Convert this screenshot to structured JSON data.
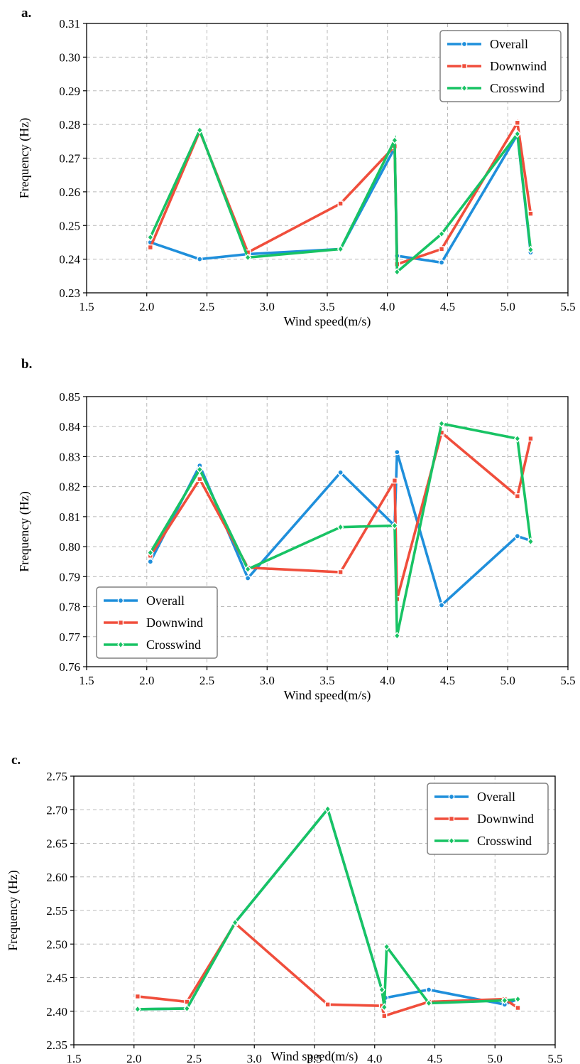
{
  "figure": {
    "colors": {
      "Overall": "#1f8fdb",
      "Downwind": "#f04e3c",
      "Crosswind": "#18c364"
    },
    "markers": {
      "Overall": "circle",
      "Downwind": "square",
      "Crosswind": "diamond"
    }
  },
  "chart_data": [
    {
      "panel_label": "a.",
      "type": "line",
      "xlabel": "Wind speed(m/s)",
      "ylabel": "Frequency (Hz)",
      "xlim": [
        1.5,
        5.5
      ],
      "ylim": [
        0.23,
        0.31
      ],
      "xticks": [
        "1.5",
        "2.0",
        "2.5",
        "3.0",
        "3.5",
        "4.0",
        "4.5",
        "5.0",
        "5.5"
      ],
      "yticks": [
        "0.23",
        "0.24",
        "0.25",
        "0.26",
        "0.27",
        "0.28",
        "0.29",
        "0.30",
        "0.31"
      ],
      "grid": true,
      "legend_position": "top-right",
      "series": [
        {
          "name": "Overall",
          "x": [
            2.03,
            2.44,
            2.84,
            3.61,
            4.06,
            4.08,
            4.45,
            5.08,
            5.19
          ],
          "y": [
            0.245,
            0.24,
            0.2415,
            0.243,
            0.273,
            0.241,
            0.239,
            0.277,
            0.242
          ]
        },
        {
          "name": "Downwind",
          "x": [
            2.03,
            2.44,
            2.84,
            3.61,
            4.06,
            4.08,
            4.45,
            5.08,
            5.19
          ],
          "y": [
            0.2435,
            0.278,
            0.242,
            0.2565,
            0.2735,
            0.2385,
            0.243,
            0.2805,
            0.2535
          ]
        },
        {
          "name": "Crosswind",
          "x": [
            2.03,
            2.44,
            2.84,
            3.61,
            4.06,
            4.08,
            4.45,
            5.08,
            5.19
          ],
          "y": [
            0.2465,
            0.2783,
            0.2405,
            0.243,
            0.2753,
            0.2362,
            0.2475,
            0.2772,
            0.2428
          ]
        }
      ]
    },
    {
      "panel_label": "b.",
      "type": "line",
      "xlabel": "Wind speed(m/s)",
      "ylabel": "Frequency (Hz)",
      "xlim": [
        1.5,
        5.5
      ],
      "ylim": [
        0.76,
        0.85
      ],
      "xticks": [
        "1.5",
        "2.0",
        "2.5",
        "3.0",
        "3.5",
        "4.0",
        "4.5",
        "5.0",
        "5.5"
      ],
      "yticks": [
        "0.76",
        "0.77",
        "0.78",
        "0.79",
        "0.80",
        "0.81",
        "0.82",
        "0.83",
        "0.84",
        "0.85"
      ],
      "grid": true,
      "legend_position": "bottom-left",
      "series": [
        {
          "name": "Overall",
          "x": [
            2.03,
            2.44,
            2.84,
            3.61,
            4.06,
            4.08,
            4.45,
            5.08,
            5.19
          ],
          "y": [
            0.795,
            0.827,
            0.7895,
            0.8247,
            0.807,
            0.8315,
            0.7805,
            0.8035,
            0.802
          ]
        },
        {
          "name": "Downwind",
          "x": [
            2.03,
            2.44,
            2.84,
            3.61,
            4.06,
            4.08,
            4.45,
            5.08,
            5.19
          ],
          "y": [
            0.797,
            0.8225,
            0.793,
            0.7915,
            0.822,
            0.7825,
            0.838,
            0.8168,
            0.836
          ]
        },
        {
          "name": "Crosswind",
          "x": [
            2.03,
            2.44,
            2.84,
            3.61,
            4.06,
            4.08,
            4.45,
            5.08,
            5.19
          ],
          "y": [
            0.798,
            0.8257,
            0.7925,
            0.8065,
            0.807,
            0.7703,
            0.841,
            0.836,
            0.8017
          ]
        }
      ]
    },
    {
      "panel_label": "c.",
      "type": "line",
      "xlabel": "Wind speed(m/s)",
      "ylabel": "Frequency (Hz)",
      "xlim": [
        1.5,
        5.5
      ],
      "ylim": [
        2.35,
        2.75
      ],
      "xticks": [
        "1.5",
        "2.0",
        "2.5",
        "3.0",
        "3.5",
        "4.0",
        "4.5",
        "5.0",
        "5.5"
      ],
      "yticks": [
        "2.35",
        "2.40",
        "2.45",
        "2.50",
        "2.55",
        "2.60",
        "2.65",
        "2.70",
        "2.75"
      ],
      "grid": true,
      "legend_position": "top-right",
      "series": [
        {
          "name": "Overall",
          "x": [
            2.03,
            2.44,
            2.84,
            3.61,
            4.06,
            4.08,
            4.09,
            4.45,
            5.08,
            5.19
          ],
          "y": [
            2.403,
            2.404,
            2.532,
            2.701,
            2.432,
            2.408,
            2.42,
            2.432,
            2.41,
            2.418
          ]
        },
        {
          "name": "Downwind",
          "x": [
            2.03,
            2.44,
            2.84,
            3.61,
            4.06,
            4.08,
            4.45,
            5.08,
            5.19
          ],
          "y": [
            2.422,
            2.414,
            2.531,
            2.41,
            2.408,
            2.393,
            2.414,
            2.418,
            2.405
          ]
        },
        {
          "name": "Crosswind",
          "x": [
            2.03,
            2.44,
            2.84,
            3.61,
            4.06,
            4.08,
            4.1,
            4.45,
            5.08,
            5.19
          ],
          "y": [
            2.403,
            2.404,
            2.532,
            2.701,
            2.432,
            2.406,
            2.496,
            2.412,
            2.416,
            2.418
          ]
        }
      ]
    }
  ]
}
